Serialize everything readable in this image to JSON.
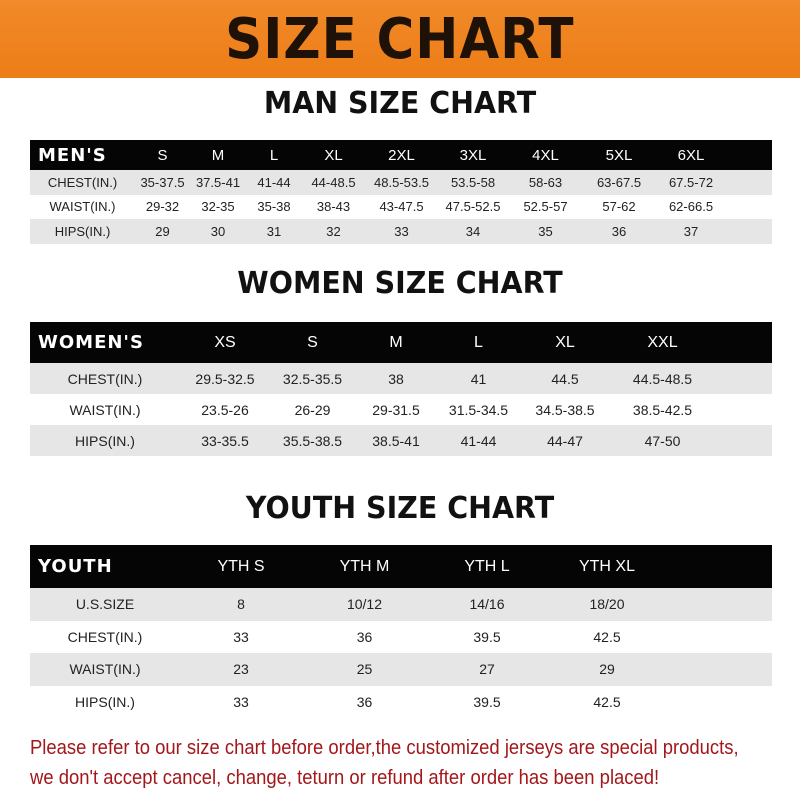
{
  "title": "SIZE CHART",
  "colors": {
    "banner": "#ee7d16",
    "header_row": "#050505",
    "stripe": "#e6e6e6",
    "note": "#a3161a"
  },
  "tables": {
    "men": {
      "title": "MAN SIZE CHART",
      "header": [
        "MEN'S",
        "S",
        "M",
        "L",
        "XL",
        "2XL",
        "3XL",
        "4XL",
        "5XL",
        "6XL"
      ],
      "rows": [
        [
          "CHEST(IN.)",
          "35-37.5",
          "37.5-41",
          "41-44",
          "44-48.5",
          "48.5-53.5",
          "53.5-58",
          "58-63",
          "63-67.5",
          "67.5-72"
        ],
        [
          "WAIST(IN.)",
          "29-32",
          "32-35",
          "35-38",
          "38-43",
          "43-47.5",
          "47.5-52.5",
          "52.5-57",
          "57-62",
          "62-66.5"
        ],
        [
          "HIPS(IN.)",
          "29",
          "30",
          "31",
          "32",
          "33",
          "34",
          "35",
          "36",
          "37"
        ]
      ]
    },
    "women": {
      "title": "WOMEN SIZE CHART",
      "header": [
        "WOMEN'S",
        "XS",
        "S",
        "M",
        "L",
        "XL",
        "XXL"
      ],
      "rows": [
        [
          "CHEST(IN.)",
          "29.5-32.5",
          "32.5-35.5",
          "38",
          "41",
          "44.5",
          "44.5-48.5"
        ],
        [
          "WAIST(IN.)",
          "23.5-26",
          "26-29",
          "29-31.5",
          "31.5-34.5",
          "34.5-38.5",
          "38.5-42.5"
        ],
        [
          "HIPS(IN.)",
          "33-35.5",
          "35.5-38.5",
          "38.5-41",
          "41-44",
          "44-47",
          "47-50"
        ]
      ]
    },
    "youth": {
      "title": "YOUTH SIZE CHART",
      "header": [
        "YOUTH",
        "YTH S",
        "YTH M",
        "YTH L",
        "YTH XL"
      ],
      "rows": [
        [
          "U.S.SIZE",
          "8",
          "10/12",
          "14/16",
          "18/20"
        ],
        [
          "CHEST(IN.)",
          "33",
          "36",
          "39.5",
          "42.5"
        ],
        [
          "WAIST(IN.)",
          "23",
          "25",
          "27",
          "29"
        ],
        [
          "HIPS(IN.)",
          "33",
          "36",
          "39.5",
          "42.5"
        ]
      ]
    }
  },
  "note": {
    "line1": "Please refer to our size chart before order,the customized jerseys are special products,",
    "line2": "we don't accept cancel, change, teturn or refund after order has been placed!"
  }
}
